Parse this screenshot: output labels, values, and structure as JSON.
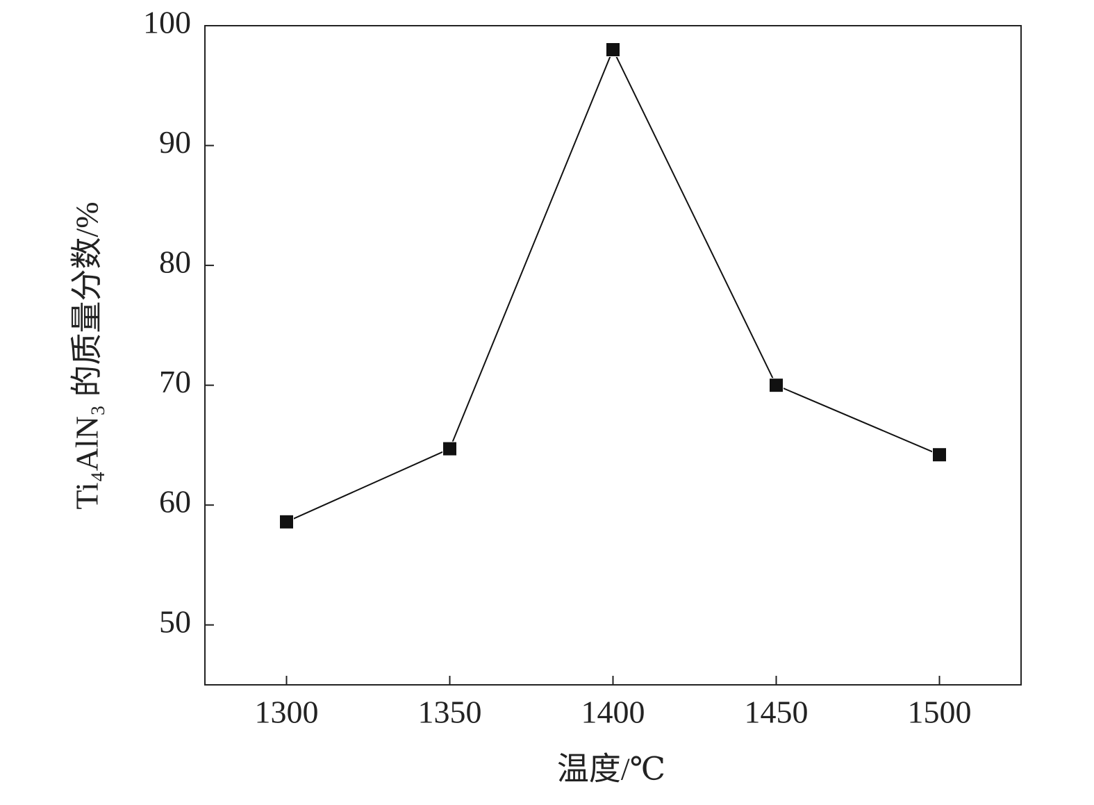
{
  "chart_data": {
    "type": "line",
    "xlabel": "温度/℃",
    "ylabel": "Ti₄AlN₃ 的质量分数/%",
    "x": [
      1300,
      1350,
      1400,
      1450,
      1500
    ],
    "values": [
      58.6,
      64.7,
      98.0,
      70.0,
      64.2
    ],
    "color": "#111111",
    "marker": "square",
    "xlim": [
      1275,
      1525
    ],
    "xticks": [
      1300,
      1350,
      1400,
      1450,
      1500
    ],
    "ylim": [
      45,
      100
    ],
    "yticks": [
      50,
      60,
      70,
      80,
      90,
      100
    ],
    "grid": false
  }
}
